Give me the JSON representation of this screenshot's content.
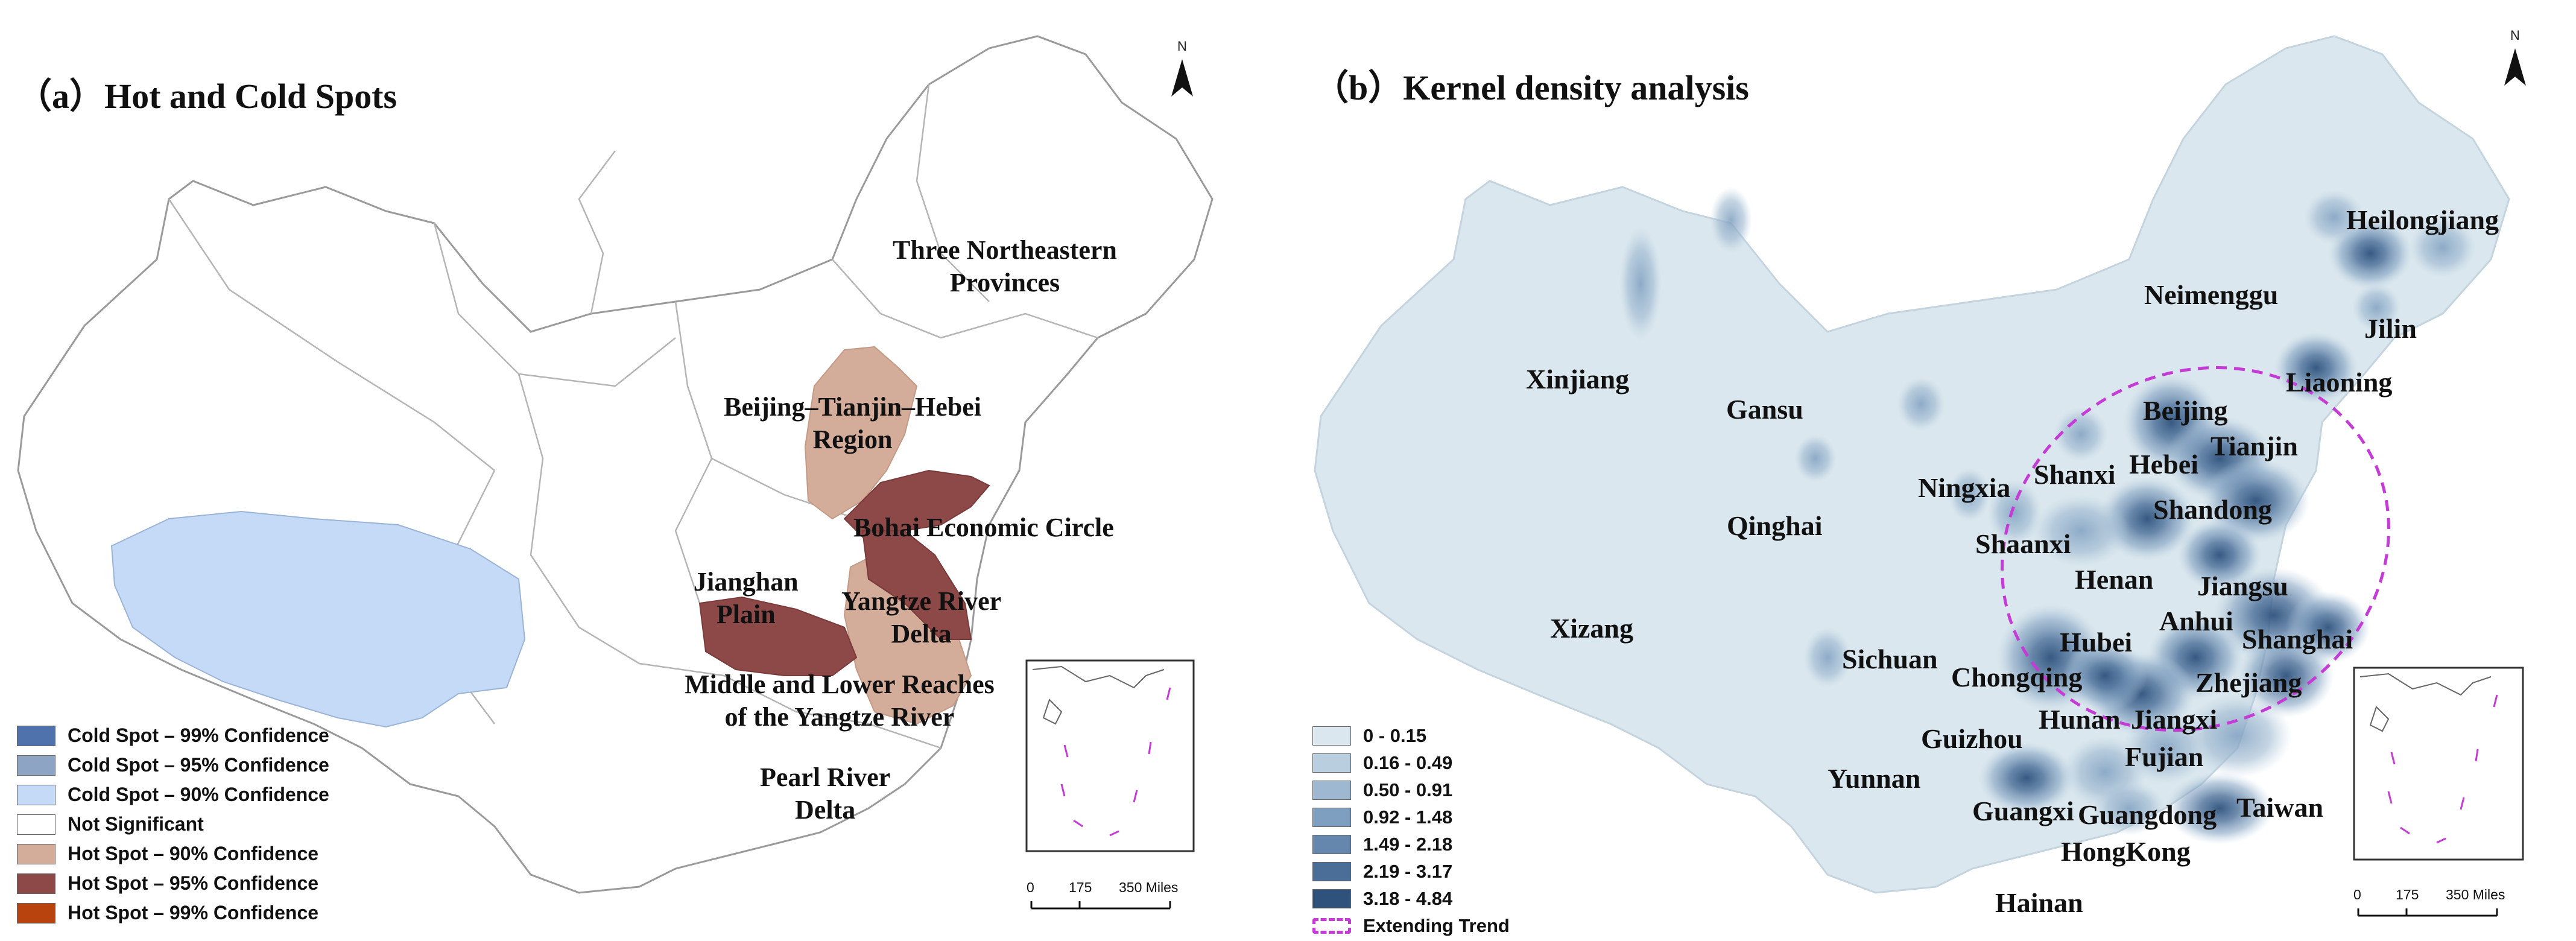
{
  "panel_a": {
    "title": "（a）Hot and Cold Spots",
    "north": "N",
    "regions": {
      "northeast": [
        "Three Northeastern",
        "Provinces"
      ],
      "jjj": [
        "Beijing–Tianjin–Hebei",
        "Region"
      ],
      "bohai": "Bohai Economic Circle",
      "jianghan": [
        "Jianghan",
        "Plain"
      ],
      "yrd": [
        "Yangtze River",
        "Delta"
      ],
      "mlryr": [
        "Middle and Lower Reaches",
        "of the Yangtze River"
      ],
      "prd": [
        "Pearl River",
        "Delta"
      ]
    },
    "legend": [
      {
        "label": "Cold Spot – 99% Confidence",
        "color": "#4f72ac"
      },
      {
        "label": "Cold Spot – 95% Confidence",
        "color": "#8ea4c4"
      },
      {
        "label": "Cold Spot – 90% Confidence",
        "color": "#c4daf7"
      },
      {
        "label": "Not Significant",
        "color": "#ffffff"
      },
      {
        "label": "Hot Spot – 90% Confidence",
        "color": "#d4ac9a"
      },
      {
        "label": "Hot Spot – 95% Confidence",
        "color": "#8d4848"
      },
      {
        "label": "Hot Spot – 99% Confidence",
        "color": "#b8430e"
      }
    ],
    "scale": {
      "ticks": [
        "0",
        "175",
        "350 Miles"
      ]
    }
  },
  "panel_b": {
    "title": "（b）Kernel density analysis",
    "north": "N",
    "provinces": {
      "heilongjiang": "Heilongjiang",
      "jilin": "Jilin",
      "liaoning": "Liaoning",
      "neimenggu": "Neimenggu",
      "xinjiang": "Xinjiang",
      "gansu": "Gansu",
      "beijing": "Beijing",
      "tianjin": "Tianjin",
      "hebei": "Hebei",
      "shanxi": "Shanxi",
      "ningxia": "Ningxia",
      "shandong": "Shandong",
      "qinghai": "Qinghai",
      "shaanxi": "Shaanxi",
      "henan": "Henan",
      "jiangsu": "Jiangsu",
      "xizang": "Xizang",
      "anhui": "Anhui",
      "shanghai": "Shanghai",
      "sichuan": "Sichuan",
      "hubei": "Hubei",
      "chongqing": "Chongqing",
      "zhejiang": "Zhejiang",
      "hunan": "Hunan",
      "jiangxi": "Jiangxi",
      "guizhou": "Guizhou",
      "fujian": "Fujian",
      "yunnan": "Yunnan",
      "guangxi": "Guangxi",
      "guangdong": "Guangdong",
      "taiwan": "Taiwan",
      "hongkong": "HongKong",
      "hainan": "Hainan"
    },
    "legend": [
      {
        "label": "0 - 0.15",
        "color": "#dbe7ee"
      },
      {
        "label": "0.16 - 0.49",
        "color": "#b9cfe0"
      },
      {
        "label": "0.50 - 0.91",
        "color": "#9db8d0"
      },
      {
        "label": "0.92 - 1.48",
        "color": "#7f9fc0"
      },
      {
        "label": "1.49 - 2.18",
        "color": "#6587ad"
      },
      {
        "label": "2.19 - 3.17",
        "color": "#4a6e98"
      },
      {
        "label": "3.18 - 4.84",
        "color": "#2e527c"
      }
    ],
    "trend_label": "Extending Trend",
    "scale": {
      "ticks": [
        "0",
        "175",
        "350 Miles"
      ]
    }
  }
}
